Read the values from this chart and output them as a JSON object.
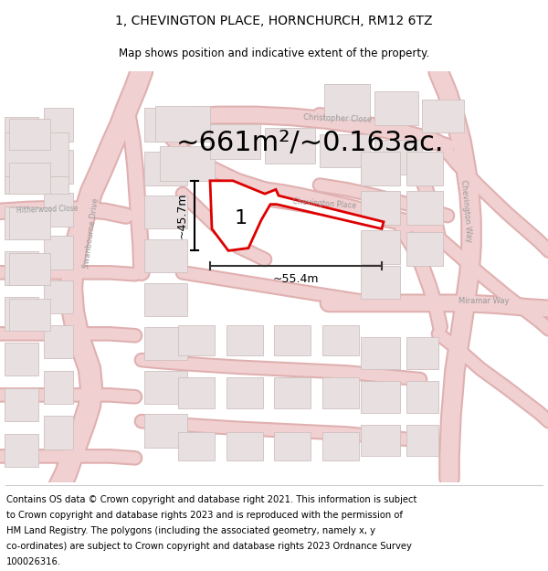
{
  "title_line1": "1, CHEVINGTON PLACE, HORNCHURCH, RM12 6TZ",
  "title_line2": "Map shows position and indicative extent of the property.",
  "area_text": "~661m²/~0.163ac.",
  "dim_vertical": "~45.7m",
  "dim_horizontal": "~55.4m",
  "plot_number": "1",
  "footer_lines": [
    "Contains OS data © Crown copyright and database right 2021. This information is subject",
    "to Crown copyright and database rights 2023 and is reproduced with the permission of",
    "HM Land Registry. The polygons (including the associated geometry, namely x, y",
    "co-ordinates) are subject to Crown copyright and database rights 2023 Ordnance Survey",
    "100026316."
  ],
  "map_bg": "#f2eeee",
  "road_color": "#f0d0d0",
  "road_outline": "#e0b0b0",
  "building_color": "#e8e0e0",
  "building_outline": "#d0c0c0",
  "highlight_color": "#dd0000",
  "street_label_color": "#999999",
  "title_fontsize": 10,
  "subtitle_fontsize": 8.5,
  "area_fontsize": 22,
  "dim_fontsize": 9,
  "footer_fontsize": 7.2,
  "plot_label_fontsize": 16
}
